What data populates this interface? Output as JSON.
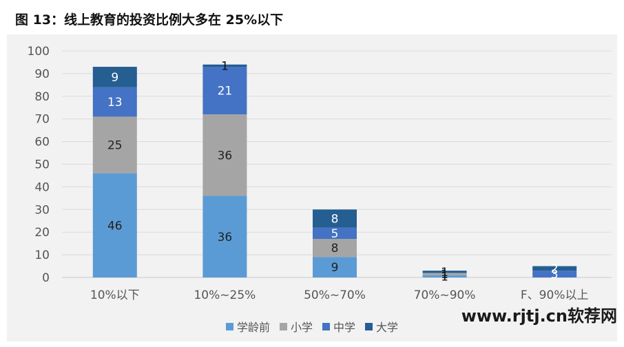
{
  "title": "图 13：线上教育的投资比例大多在 25%以下",
  "watermark": "www.rjtj.cn软荐网",
  "chart_data": {
    "type": "bar",
    "stacked": true,
    "categories": [
      "10%以下",
      "10%~25%",
      "50%~70%",
      "70%~90%",
      "F、90%以上"
    ],
    "series": [
      {
        "name": "学龄前",
        "color": "#5b9bd5",
        "values": [
          46,
          36,
          9,
          1,
          0
        ]
      },
      {
        "name": "小学",
        "color": "#a5a5a5",
        "values": [
          25,
          36,
          8,
          1,
          0
        ]
      },
      {
        "name": "中学",
        "color": "#4472c4",
        "values": [
          13,
          21,
          5,
          0,
          3
        ]
      },
      {
        "name": "大学",
        "color": "#255e91",
        "values": [
          9,
          1,
          8,
          1,
          2
        ]
      }
    ],
    "ylim": [
      0,
      100
    ],
    "yticks": [
      0,
      10,
      20,
      30,
      40,
      50,
      60,
      70,
      80,
      90,
      100
    ],
    "grid": true,
    "legend_position": "bottom"
  }
}
